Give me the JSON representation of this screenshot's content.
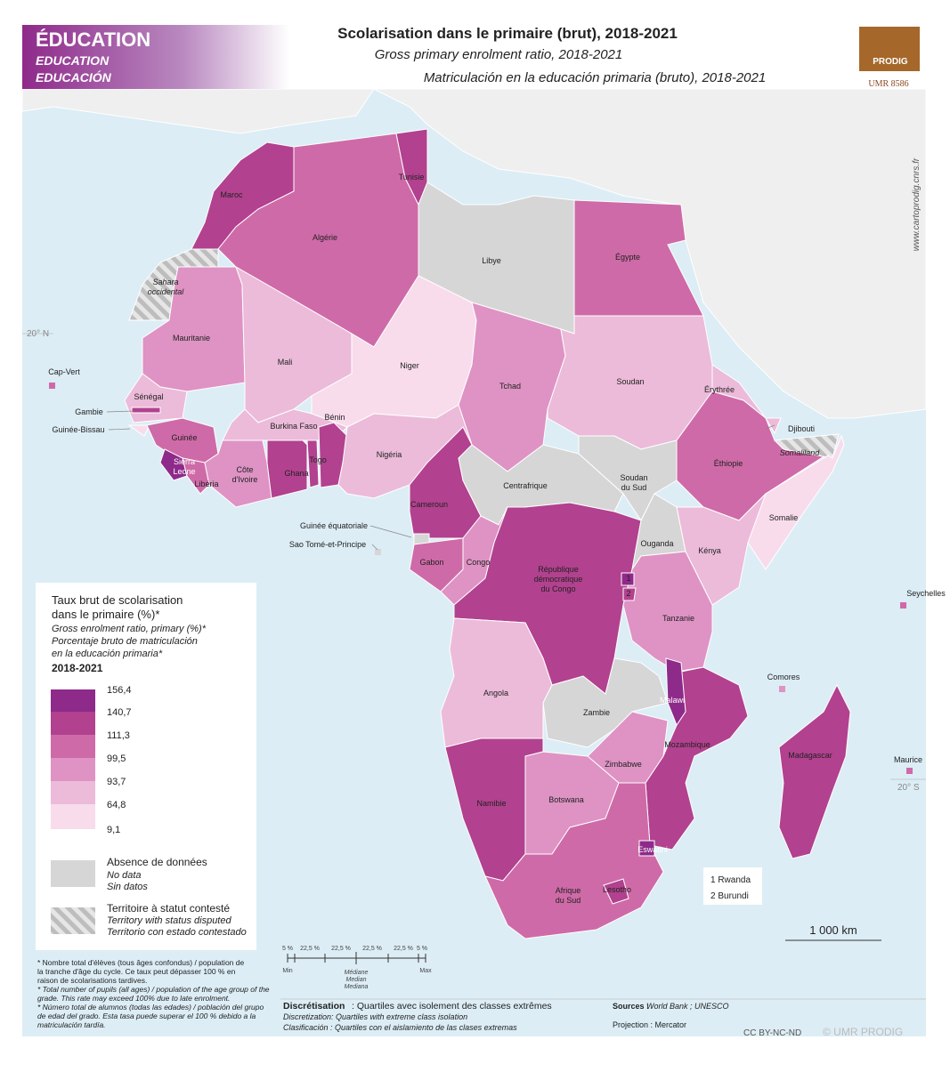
{
  "header": {
    "theme": [
      "ÉDUCATION",
      "EDUCATION",
      "EDUCACIÓN"
    ],
    "title": "Scolarisation dans le primaire (brut), 2018-2021",
    "subtitle_en": "Gross primary enrolment ratio, 2018-2021",
    "subtitle_es": "Matriculación en la educación primaria (bruto), 2018-2021",
    "logo": "PRODIG",
    "unit": "UMR 8586",
    "website": "www.cartoprodig.cnrs.fr"
  },
  "map": {
    "latitudes": [
      "20° N",
      "20° S"
    ],
    "labels": [
      "Maroc",
      "Algérie",
      "Tunisie",
      "Libye",
      "Égypte",
      [
        "Sahara",
        "occidental"
      ],
      "Mauritanie",
      "Mali",
      "Niger",
      "Tchad",
      "Soudan",
      "Érythrée",
      "Djibouti",
      "Somaliland",
      "Éthiopie",
      "Somalie",
      "Sénégal",
      "Gambie",
      "Guinée-Bissau",
      "Cap-Vert",
      "Guinée",
      [
        "Sierra",
        "Leone"
      ],
      "Libéria",
      [
        "Côte",
        "d'Ivoire"
      ],
      "Burkina Faso",
      "Ghana",
      "Togo",
      "Bénin",
      "Nigéria",
      "Cameroun",
      "Centrafrique",
      [
        "Soudan",
        "du Sud"
      ],
      "Guinée équatoriale",
      "Sao Tomé-et-Principe",
      "Gabon",
      "Congo",
      [
        "République",
        "démocratique",
        "du Congo"
      ],
      "Ouganda",
      "Kénya",
      "Tanzanie",
      "Seychelles",
      "Comores",
      "Angola",
      "Zambie",
      "Malawi",
      "Mozambique",
      "Madagascar",
      "Maurice",
      "Zimbabwe",
      "Botswana",
      "Namibie",
      "Eswatini",
      "Lesotho",
      [
        "Afrique",
        "du Sud"
      ],
      "1",
      "2"
    ],
    "inset": [
      "1 Rwanda",
      "2 Burundi"
    ],
    "scale": "1 000 km"
  },
  "legend": {
    "title": [
      "Taux brut de scolarisation",
      "dans le primaire (%)*"
    ],
    "title_en": "Gross enrolment ratio, primary (%)*",
    "title_es": [
      "Porcentaje bruto de matriculación",
      "en la educación primaria*"
    ],
    "period": "2018-2021",
    "breaks": [
      "156,4",
      "140,7",
      "111,3",
      "99,5",
      "93,7",
      "64,8",
      "9,1"
    ],
    "colors": [
      "#8e2a8a",
      "#b2418f",
      "#cf6aa8",
      "#de93c4",
      "#ecbbd9",
      "#f8dcec"
    ],
    "no_data": [
      "Absence de données",
      "No data",
      "Sin datos"
    ],
    "disputed": [
      "Territoire à statut contesté",
      "Territory with status disputed",
      "Territorio con estado contestado"
    ]
  },
  "footnote": [
    "* Nombre total d'élèves (tous âges confondus) / population de",
    "la tranche d'âge du cycle. Ce taux peut dépasser 100 % en",
    "raison de scolarisations tardives.",
    "* Total number of pupils (all ages) / population of the age group of the",
    "grade. This rate may exceed 100% due to late enrolment.",
    "* Número total de alumnos (todas las edades) / población del grupo",
    "de edad del grado. Esta tasa puede superar el 100 % debido a la",
    "matriculación tardía."
  ],
  "quartiles": {
    "shares": [
      "5 %",
      "22,5 %",
      "22,5 %",
      "22,5 %",
      "22,5 %",
      "5 %"
    ],
    "ends": [
      "Min",
      "Max"
    ],
    "median": [
      "Médiane",
      "Median",
      "Mediana"
    ]
  },
  "discretisation": {
    "label": "Discrétisation",
    "text": " : Quartiles avec isolement des classes extrêmes",
    "en": "Discretization: Quartiles with extreme class isolation",
    "es": "Clasificación : Quartiles con el aislamiento de las clases extremas"
  },
  "sources": {
    "label": "Sources :",
    "text": " World Bank ; UNESCO",
    "projection": "Projection : Mercator"
  },
  "license": "CC BY-NC-ND",
  "copyright": "© UMR PRODIG"
}
